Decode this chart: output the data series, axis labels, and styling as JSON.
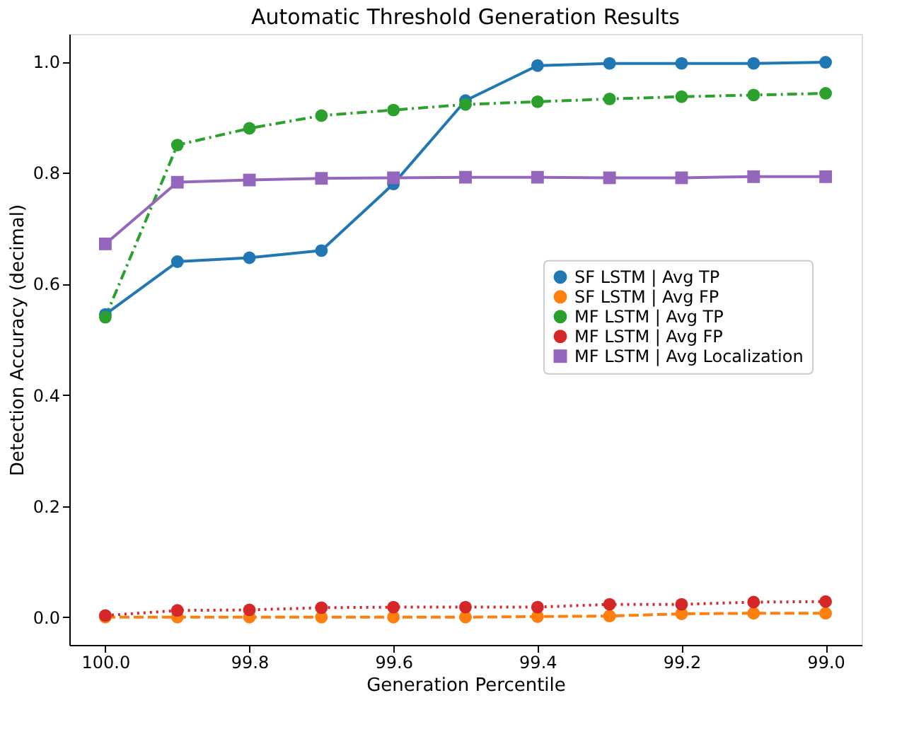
{
  "chart_data": {
    "type": "line",
    "title": "Automatic Threshold Generation Results",
    "xlabel": "Generation Percentile",
    "ylabel": "Detection Accuracy (decimal)",
    "x": [
      100.0,
      99.9,
      99.8,
      99.7,
      99.6,
      99.5,
      99.4,
      99.3,
      99.2,
      99.1,
      99.0
    ],
    "xlim": [
      100.05,
      98.95
    ],
    "xticks": [
      {
        "value": 100.0,
        "label": "100.0"
      },
      99.8,
      99.6,
      99.4,
      99.2,
      {
        "value": 99.0,
        "label": "99.0"
      }
    ],
    "ylim": [
      -0.05,
      1.05
    ],
    "yticks": [
      {
        "value": 0,
        "label": "0.0"
      },
      0.2,
      0.4,
      0.6,
      0.8,
      {
        "value": 1,
        "label": "1.0"
      }
    ],
    "legend": "right",
    "grid": false,
    "series": [
      {
        "name": "SF LSTM | Avg TP",
        "color": "#1f77b4",
        "marker": "circle",
        "line_style": "solid",
        "values": [
          0.545,
          0.64,
          0.647,
          0.66,
          0.78,
          0.93,
          0.993,
          0.997,
          0.997,
          0.997,
          0.999
        ]
      },
      {
        "name": "SF LSTM | Avg FP",
        "color": "#ff7f0e",
        "marker": "circle",
        "line_style": "dashed",
        "values": [
          0.0,
          0.0,
          0.0,
          0.0,
          0.0,
          0.0,
          0.001,
          0.002,
          0.006,
          0.007,
          0.007
        ]
      },
      {
        "name": "MF LSTM | Avg TP",
        "color": "#2ca02c",
        "marker": "circle",
        "line_style": "dashdot",
        "values": [
          0.54,
          0.85,
          0.88,
          0.903,
          0.913,
          0.923,
          0.928,
          0.933,
          0.937,
          0.94,
          0.943
        ]
      },
      {
        "name": "MF LSTM | Avg FP",
        "color": "#d62728",
        "marker": "circle",
        "line_style": "dotted",
        "values": [
          0.003,
          0.012,
          0.013,
          0.017,
          0.018,
          0.018,
          0.018,
          0.023,
          0.023,
          0.027,
          0.028
        ]
      },
      {
        "name": "MF LSTM | Avg Localization",
        "color": "#9467bd",
        "marker": "square",
        "line_style": "solid",
        "values": [
          0.672,
          0.783,
          0.787,
          0.79,
          0.791,
          0.792,
          0.792,
          0.791,
          0.791,
          0.793,
          0.793
        ]
      }
    ]
  }
}
